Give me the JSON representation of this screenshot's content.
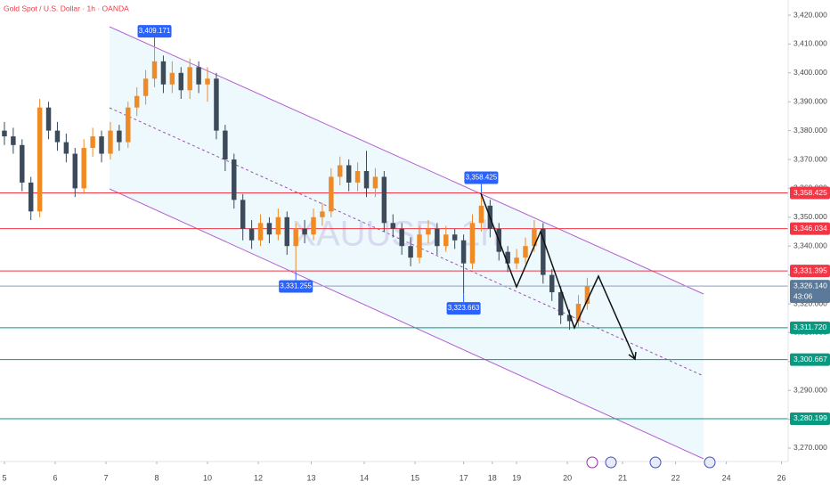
{
  "chart_data": {
    "type": "candlestick",
    "title": "Gold Spot / U.S. Dollar · 1h · OANDA",
    "watermark": "XAUUSD, 1h",
    "up_color": "#f08a24",
    "down_color": "#3c4a5a",
    "x": [
      0,
      4,
      8,
      12,
      16,
      20,
      24,
      28,
      32,
      36,
      40,
      44,
      48,
      52,
      56,
      60,
      64,
      68,
      72,
      76,
      80,
      84,
      88,
      92,
      96,
      100,
      104,
      108,
      112,
      116,
      120,
      124,
      128,
      132,
      136,
      140,
      144,
      148,
      152,
      156,
      160,
      164,
      168,
      172,
      176,
      180,
      184,
      188,
      192,
      196,
      200,
      204,
      208,
      212,
      216,
      220,
      224,
      228,
      232,
      236,
      240,
      244,
      248,
      252,
      256,
      260,
      264
    ],
    "open": [
      3380,
      3378,
      3375,
      3362,
      3352,
      3388,
      3380,
      3376,
      3372,
      3360,
      3374,
      3378,
      3372,
      3380,
      3376,
      3388,
      3392,
      3398,
      3404,
      3396,
      3400,
      3394,
      3402,
      3396,
      3398,
      3380,
      3370,
      3356,
      3346,
      3342,
      3348,
      3344,
      3350,
      3340,
      3346,
      3344,
      3350,
      3352,
      3364,
      3368,
      3362,
      3366,
      3360,
      3364,
      3348,
      3346,
      3340,
      3336,
      3344,
      3346,
      3340,
      3344,
      3342,
      3334,
      3348,
      3354,
      3346,
      3338,
      3334,
      3336,
      3340,
      3346,
      3330,
      3324,
      3316,
      3314,
      3320
    ],
    "high": [
      3383,
      3381,
      3377,
      3364,
      3391,
      3390,
      3383,
      3379,
      3374,
      3377,
      3381,
      3380,
      3383,
      3382,
      3390,
      3395,
      3401,
      3409.171,
      3406,
      3404,
      3402,
      3405,
      3404,
      3402,
      3400,
      3382,
      3372,
      3358,
      3349,
      3351,
      3350,
      3353,
      3352,
      3348,
      3349,
      3353,
      3355,
      3367,
      3371,
      3370,
      3369,
      3373,
      3367,
      3366,
      3351,
      3348,
      3343,
      3347,
      3349,
      3348,
      3347,
      3346,
      3344,
      3351,
      3358.425,
      3356,
      3348,
      3340,
      3339,
      3343,
      3349,
      3348,
      3332,
      3326,
      3318,
      3323,
      3329
    ],
    "low": [
      3375,
      3372,
      3359,
      3349,
      3350,
      3377,
      3373,
      3369,
      3357,
      3358,
      3371,
      3369,
      3370,
      3373,
      3374,
      3385,
      3389,
      3395,
      3393,
      3393,
      3391,
      3391,
      3393,
      3390,
      3377,
      3366,
      3353,
      3342,
      3339,
      3340,
      3341,
      3342,
      3337,
      3331.255,
      3341,
      3342,
      3347,
      3350,
      3361,
      3359,
      3359,
      3357,
      3357,
      3345,
      3343,
      3337,
      3333,
      3334,
      3341,
      3337,
      3338,
      3339,
      3323.663,
      3332,
      3345,
      3343,
      3335,
      3331,
      3332,
      3334,
      3338,
      3327,
      3321,
      3313,
      3311,
      3312,
      3318
    ],
    "close": [
      3378,
      3375,
      3362,
      3352,
      3388,
      3380,
      3376,
      3372,
      3360,
      3374,
      3378,
      3372,
      3380,
      3376,
      3388,
      3392,
      3398,
      3404,
      3396,
      3400,
      3394,
      3402,
      3396,
      3398,
      3380,
      3370,
      3356,
      3346,
      3342,
      3348,
      3344,
      3350,
      3340,
      3346,
      3344,
      3350,
      3352,
      3364,
      3368,
      3362,
      3366,
      3360,
      3364,
      3348,
      3346,
      3340,
      3336,
      3344,
      3346,
      3340,
      3344,
      3342,
      3334,
      3348,
      3354,
      3346,
      3338,
      3334,
      3336,
      3340,
      3346,
      3330,
      3324,
      3316,
      3314,
      3320,
      3326.14
    ],
    "xlim": [
      -2,
      355
    ],
    "xticks": [
      {
        "value": 0,
        "label": "5"
      },
      {
        "value": 23,
        "label": "6"
      },
      {
        "value": 46,
        "label": "7"
      },
      {
        "value": 69,
        "label": "8"
      },
      {
        "value": 92,
        "label": "10"
      },
      {
        "value": 115,
        "label": "12"
      },
      {
        "value": 139,
        "label": "13"
      },
      {
        "value": 163,
        "label": "14"
      },
      {
        "value": 186,
        "label": "15"
      },
      {
        "value": 208,
        "label": "17"
      },
      {
        "value": 221,
        "label": "18"
      },
      {
        "value": 232,
        "label": "19"
      },
      {
        "value": 255,
        "label": "20"
      },
      {
        "value": 280,
        "label": "21"
      },
      {
        "value": 304,
        "label": "22"
      },
      {
        "value": 327,
        "label": "24"
      },
      {
        "value": 352,
        "label": "26"
      }
    ],
    "ylim": [
      3265.37,
      3425.25
    ],
    "yticks": [
      {
        "value": 3270,
        "label": "3,270.000"
      },
      {
        "value": 3280,
        "label": "3,280.000"
      },
      {
        "value": 3290,
        "label": "3,290.000"
      },
      {
        "value": 3300,
        "label": "3,300.000"
      },
      {
        "value": 3310,
        "label": "3,310.000"
      },
      {
        "value": 3320,
        "label": "3,320.000"
      },
      {
        "value": 3330,
        "label": "3,330.000"
      },
      {
        "value": 3340,
        "label": "3,340.000"
      },
      {
        "value": 3350,
        "label": "3,350.000"
      },
      {
        "value": 3360,
        "label": "3,360.000"
      },
      {
        "value": 3370,
        "label": "3,370.000"
      },
      {
        "value": 3380,
        "label": "3,380.000"
      },
      {
        "value": 3390,
        "label": "3,390.000"
      },
      {
        "value": 3400,
        "label": "3,400.000"
      },
      {
        "value": 3410,
        "label": "3,410.000"
      },
      {
        "value": 3420,
        "label": "3,420.000"
      }
    ],
    "levels": [
      {
        "value": 3358.425,
        "label": "3,358.425",
        "color": "#f23645"
      },
      {
        "value": 3346.034,
        "label": "3,346.034",
        "color": "#f23645"
      },
      {
        "value": 3331.395,
        "label": "3,331.395",
        "color": "#f23645"
      },
      {
        "value": 3311.72,
        "label": "3,311.720",
        "color": "#089981"
      },
      {
        "value": 3300.667,
        "label": "3,300.667",
        "color": "#089981"
      },
      {
        "value": 3280.199,
        "label": "3,280.199",
        "color": "#089981"
      }
    ],
    "current": {
      "value": 3326.14,
      "label": "3,326.140",
      "countdown": "43:06",
      "color": "#5b7a99"
    },
    "annotations": [
      {
        "x": 68,
        "value": 3409.171,
        "label": "3,409.171",
        "position": "above"
      },
      {
        "x": 216,
        "value": 3358.425,
        "label": "3,358.425",
        "position": "above"
      },
      {
        "x": 132,
        "value": 3331.255,
        "label": "3,331.255",
        "position": "below"
      },
      {
        "x": 208,
        "value": 3323.663,
        "label": "3,323.663",
        "position": "below"
      }
    ]
  }
}
